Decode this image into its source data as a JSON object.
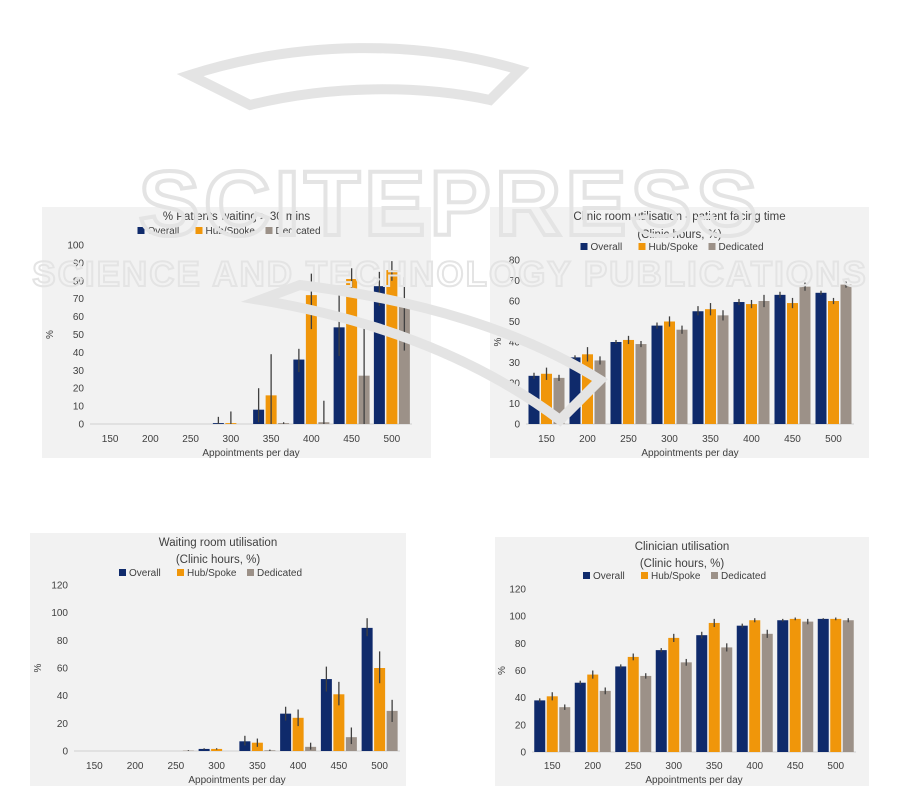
{
  "colors": {
    "Overall": "#0f2a6b",
    "Hub/Spoke": "#f0960a",
    "Dedicated": "#9c9188",
    "errorbar": "#404040",
    "watermark": "#e4e4e4"
  },
  "watermark": {
    "main": "SCITEPRESS",
    "sub": "SCIENCE AND TECHNOLOGY PUBLICATIONS"
  },
  "chart_data": [
    {
      "type": "bar",
      "title": "% Patients waiting > 30 mins",
      "subtitle": "",
      "xlabel": "Appointments per day",
      "ylabel": "%",
      "ylim": [
        0,
        100
      ],
      "yticks": [
        0,
        10,
        20,
        30,
        40,
        50,
        60,
        70,
        80,
        90,
        100
      ],
      "grid": false,
      "legend": "top",
      "categories": [
        "150",
        "200",
        "250",
        "300",
        "350",
        "400",
        "450",
        "500"
      ],
      "series": [
        {
          "name": "Overall",
          "values": [
            0,
            0,
            0,
            0.5,
            8,
            36,
            54,
            77
          ],
          "err_low": [
            0,
            0,
            0,
            0.5,
            7,
            7,
            16,
            11
          ],
          "err_high": [
            0,
            0,
            0,
            3.5,
            12,
            6,
            18,
            8
          ]
        },
        {
          "name": "Hub/Spoke",
          "values": [
            0,
            0,
            0,
            0.5,
            16,
            72,
            81,
            86
          ],
          "err_low": [
            0,
            0,
            0,
            0.5,
            16,
            19,
            6,
            6
          ],
          "err_high": [
            0,
            0,
            0,
            6.5,
            23,
            12,
            6,
            5
          ]
        },
        {
          "name": "Dedicated",
          "values": [
            0,
            0,
            0,
            0,
            0.5,
            1,
            27,
            69
          ],
          "err_low": [
            0,
            0,
            0,
            0,
            0.5,
            1,
            27,
            28
          ],
          "err_high": [
            0,
            0,
            0,
            0,
            0.5,
            12,
            30,
            13
          ]
        }
      ]
    },
    {
      "type": "bar",
      "title": "Clinic room utilisation - patient facing time",
      "subtitle": "(Clinic hours, %)",
      "xlabel": "Appointments per day",
      "ylabel": "%",
      "ylim": [
        0,
        80
      ],
      "yticks": [
        0,
        10,
        20,
        30,
        40,
        50,
        60,
        70,
        80
      ],
      "grid": false,
      "legend": "top",
      "categories": [
        "150",
        "200",
        "250",
        "300",
        "350",
        "400",
        "450",
        "500"
      ],
      "series": [
        {
          "name": "Overall",
          "values": [
            23.5,
            32.5,
            40,
            48,
            55,
            59.5,
            63,
            64
          ],
          "err_low": [
            1.5,
            1,
            1,
            1.5,
            2,
            1.5,
            1.5,
            1
          ],
          "err_high": [
            1.5,
            1,
            1,
            1.5,
            2.5,
            1.5,
            1.5,
            1
          ]
        },
        {
          "name": "Hub/Spoke",
          "values": [
            24.5,
            34,
            41,
            50,
            56,
            58.5,
            59,
            60
          ],
          "err_low": [
            3,
            3.5,
            2,
            2.5,
            3,
            2,
            2.5,
            1.5
          ],
          "err_high": [
            3,
            3.5,
            2,
            2.5,
            3,
            2,
            2.5,
            1.5
          ]
        },
        {
          "name": "Dedicated",
          "values": [
            22.5,
            31,
            39,
            46,
            53,
            60,
            67,
            68
          ],
          "err_low": [
            1.5,
            2,
            1.5,
            2,
            2.5,
            3,
            2,
            1.5
          ],
          "err_high": [
            1.5,
            2,
            1.5,
            2,
            2.5,
            3,
            2,
            1.5
          ]
        }
      ]
    },
    {
      "type": "bar",
      "title": "Waiting room utilisation",
      "subtitle": "(Clinic hours, %)",
      "xlabel": "Appointments per day",
      "ylabel": "%",
      "ylim": [
        0,
        120
      ],
      "yticks": [
        0,
        20,
        40,
        60,
        80,
        100,
        120
      ],
      "grid": false,
      "legend": "top",
      "categories": [
        "150",
        "200",
        "250",
        "300",
        "350",
        "400",
        "450",
        "500"
      ],
      "series": [
        {
          "name": "Overall",
          "values": [
            0,
            0,
            0,
            1.5,
            7,
            27,
            52,
            89
          ],
          "err_low": [
            0,
            0,
            0,
            0.5,
            3,
            5,
            9,
            6
          ],
          "err_high": [
            0,
            0,
            0,
            0.5,
            4,
            5,
            9,
            7
          ]
        },
        {
          "name": "Hub/Spoke",
          "values": [
            0,
            0,
            0,
            1.5,
            6,
            24,
            41,
            60
          ],
          "err_low": [
            0,
            0,
            0,
            0.5,
            3,
            6,
            8,
            11
          ],
          "err_high": [
            0,
            0,
            0,
            0.5,
            3,
            6,
            9,
            12
          ]
        },
        {
          "name": "Dedicated",
          "values": [
            0,
            0,
            0.3,
            0,
            0.5,
            3,
            10,
            29
          ],
          "err_low": [
            0,
            0,
            0.3,
            0,
            0.5,
            2,
            5,
            8
          ],
          "err_high": [
            0,
            0,
            0.3,
            0,
            0.5,
            3,
            7,
            8
          ]
        }
      ]
    },
    {
      "type": "bar",
      "title": "Clinician utilisation",
      "subtitle": "(Clinic hours, %)",
      "xlabel": "Appointments per day",
      "ylabel": "%",
      "ylim": [
        0,
        120
      ],
      "yticks": [
        0,
        20,
        40,
        60,
        80,
        100,
        120
      ],
      "grid": false,
      "legend": "top",
      "categories": [
        "150",
        "200",
        "250",
        "300",
        "350",
        "400",
        "450",
        "500"
      ],
      "series": [
        {
          "name": "Overall",
          "values": [
            38,
            51,
            63,
            75,
            86,
            93,
            97,
            98
          ],
          "err_low": [
            1.5,
            1.5,
            1.5,
            1.5,
            2.5,
            1.5,
            1,
            0.5
          ],
          "err_high": [
            1.5,
            1.5,
            1.5,
            1.5,
            2.5,
            1.5,
            1,
            0.5
          ]
        },
        {
          "name": "Hub/Spoke",
          "values": [
            41,
            57,
            70,
            84,
            95,
            97,
            98,
            98
          ],
          "err_low": [
            3,
            3,
            2.5,
            3,
            3,
            1.5,
            1,
            1
          ],
          "err_high": [
            3,
            3,
            2.5,
            3,
            3,
            1.5,
            1,
            1
          ]
        },
        {
          "name": "Dedicated",
          "values": [
            33,
            45,
            56,
            66,
            77,
            87,
            96,
            97
          ],
          "err_low": [
            2,
            2.5,
            2,
            2.5,
            3,
            3,
            2,
            1.5
          ],
          "err_high": [
            2,
            2.5,
            2,
            2.5,
            3,
            3,
            2,
            1.5
          ]
        }
      ]
    }
  ]
}
